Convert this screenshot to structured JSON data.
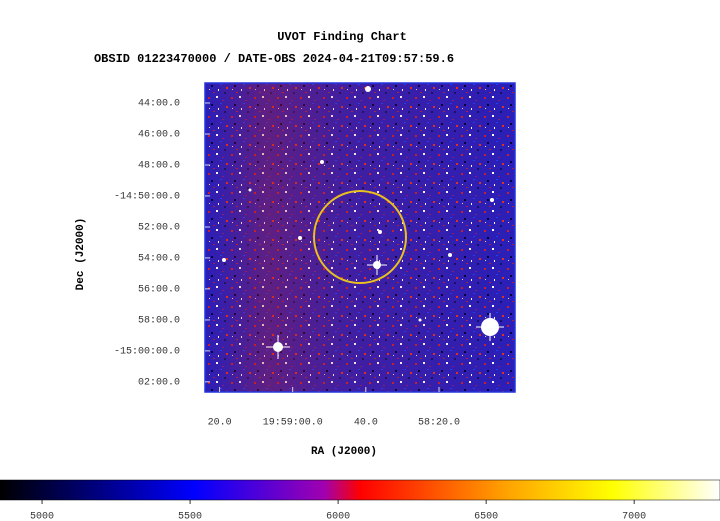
{
  "chart_data": {
    "type": "image",
    "title": "UVOT Finding Chart",
    "subtitle": "OBSID 01223470000 / DATE-OBS 2024-04-21T09:57:59.6",
    "xlabel": "RA (J2000)",
    "ylabel": "Dec (J2000)",
    "xlim": [
      299.85,
      299.4967
    ],
    "ylim": [
      -14.7118,
      -15.0442
    ],
    "xticks": [
      {
        "value": 299.8333,
        "label": "20.0"
      },
      {
        "value": 299.75,
        "label": "19:59:00.0"
      },
      {
        "value": 299.6667,
        "label": "40.0"
      },
      {
        "value": 299.5833,
        "label": "58:20.0"
      }
    ],
    "yticks": [
      {
        "value": -14.7333,
        "label": "44:00.0"
      },
      {
        "value": -14.7667,
        "label": "46:00.0"
      },
      {
        "value": -14.8,
        "label": "48:00.0"
      },
      {
        "value": -14.8333,
        "label": "-14:50:00.0"
      },
      {
        "value": -14.8667,
        "label": "52:00.0"
      },
      {
        "value": -14.9,
        "label": "54:00.0"
      },
      {
        "value": -14.9333,
        "label": "56:00.0"
      },
      {
        "value": -14.9667,
        "label": "58:00.0"
      },
      {
        "value": -15.0,
        "label": "-15:00:00.0"
      },
      {
        "value": -15.0333,
        "label": "02:00.0"
      }
    ],
    "colorbar": {
      "lim": [
        4858,
        7290
      ],
      "ticks": [
        5000,
        5500,
        6000,
        6500,
        7000
      ]
    }
  }
}
